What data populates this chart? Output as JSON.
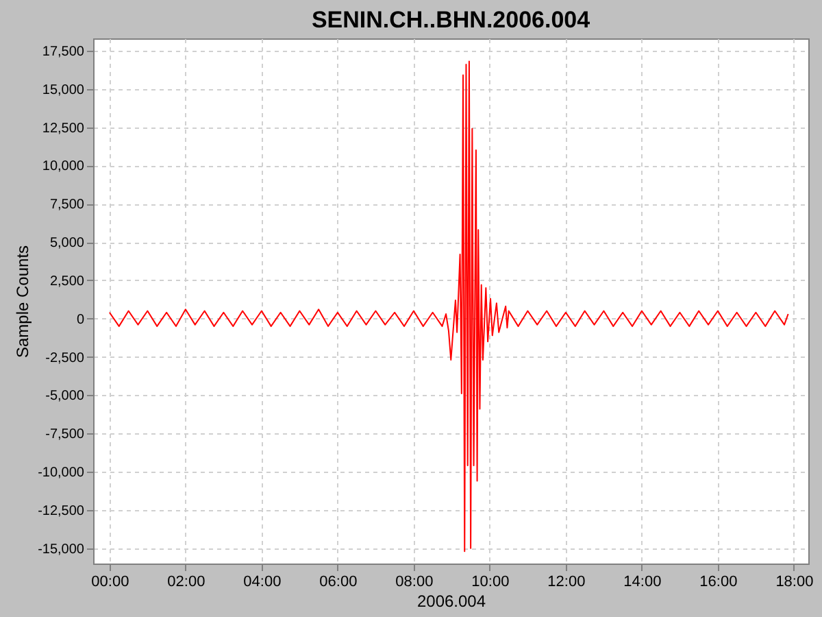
{
  "chart_data": {
    "type": "line",
    "title": "SENIN.CH..BHN.2006.004",
    "xlabel": "2006.004",
    "ylabel": "Sample Counts",
    "xlim": [
      -0.43,
      18.38
    ],
    "ylim": [
      -16000,
      18300
    ],
    "xticks": [
      {
        "value": 0,
        "label": "00:00"
      },
      {
        "value": 2,
        "label": "02:00"
      },
      {
        "value": 4,
        "label": "04:00"
      },
      {
        "value": 6,
        "label": "06:00"
      },
      {
        "value": 8,
        "label": "08:00"
      },
      {
        "value": 10,
        "label": "10:00"
      },
      {
        "value": 12,
        "label": "12:00"
      },
      {
        "value": 14,
        "label": "14:00"
      },
      {
        "value": 16,
        "label": "16:00"
      },
      {
        "value": 18,
        "label": "18:00"
      }
    ],
    "yticks": [
      {
        "value": -15000,
        "label": "-15,000"
      },
      {
        "value": -12500,
        "label": "-12,500"
      },
      {
        "value": -10000,
        "label": "-10,000"
      },
      {
        "value": -7500,
        "label": "-7,500"
      },
      {
        "value": -5000,
        "label": "-5,000"
      },
      {
        "value": -2500,
        "label": "-2,500"
      },
      0,
      {
        "value": 2500,
        "label": "2,500"
      },
      {
        "value": 5000,
        "label": "5,000"
      },
      {
        "value": 7500,
        "label": "7,500"
      },
      {
        "value": 10000,
        "label": "10,000"
      },
      {
        "value": 12500,
        "label": "12,500"
      },
      {
        "value": 15000,
        "label": "15,000"
      },
      {
        "value": 17500,
        "label": "17,500"
      }
    ],
    "grid": true,
    "marker": "none",
    "line_style": "solid",
    "series": [
      {
        "color": "#ff0000",
        "x": [
          0,
          0.25,
          0.5,
          0.75,
          1,
          1.25,
          1.5,
          1.75,
          2,
          2.25,
          2.5,
          2.75,
          3,
          3.25,
          3.5,
          3.75,
          4,
          4.25,
          4.5,
          4.75,
          5,
          5.25,
          5.5,
          5.75,
          6,
          6.25,
          6.5,
          6.75,
          7,
          7.25,
          7.5,
          7.75,
          8,
          8.25,
          8.5,
          8.75,
          8.85,
          8.92,
          8.98,
          9.1,
          9.14,
          9.22,
          9.26,
          9.3,
          9.34,
          9.38,
          9.42,
          9.46,
          9.5,
          9.54,
          9.58,
          9.64,
          9.67,
          9.7,
          9.74,
          9.78,
          9.82,
          9.9,
          9.95,
          10.02,
          10.07,
          10.18,
          10.24,
          10.42,
          10.46,
          10.5,
          10.75,
          11,
          11.25,
          11.5,
          11.75,
          12,
          12.25,
          12.5,
          12.75,
          13,
          13.25,
          13.5,
          13.75,
          14,
          14.25,
          14.5,
          14.75,
          15,
          15.25,
          15.5,
          15.75,
          16,
          16.25,
          16.5,
          16.75,
          17,
          17.25,
          17.5,
          17.75,
          17.85
        ],
        "values": [
          400,
          -500,
          500,
          -400,
          500,
          -500,
          400,
          -500,
          600,
          -400,
          500,
          -500,
          400,
          -500,
          500,
          -400,
          500,
          -500,
          400,
          -500,
          500,
          -400,
          600,
          -500,
          400,
          -500,
          500,
          -400,
          500,
          -400,
          400,
          -500,
          500,
          -500,
          400,
          -500,
          300,
          -800,
          -2700,
          1200,
          -900,
          4200,
          -4900,
          15900,
          -15200,
          16600,
          -9600,
          16800,
          -15000,
          12400,
          -9600,
          11000,
          -10600,
          5800,
          -5900,
          2200,
          -2700,
          2000,
          -1500,
          1300,
          -1100,
          1000,
          -900,
          800,
          -600,
          500,
          -500,
          500,
          -400,
          500,
          -500,
          400,
          -500,
          500,
          -400,
          500,
          -500,
          400,
          -500,
          500,
          -400,
          500,
          -500,
          400,
          -500,
          500,
          -400,
          500,
          -500,
          400,
          -500,
          400,
          -500,
          500,
          -400,
          300
        ]
      }
    ]
  }
}
